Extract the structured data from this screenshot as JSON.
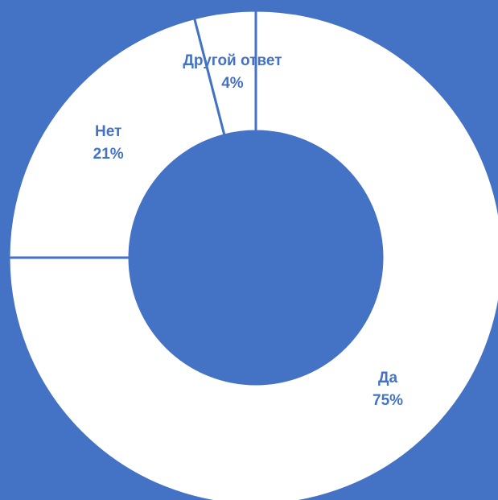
{
  "chart_data": {
    "type": "donut",
    "categories": [
      "Да",
      "Нет",
      "Другой ответ"
    ],
    "values": [
      75,
      21,
      4
    ],
    "value_labels": [
      "75%",
      "21%",
      "4%"
    ],
    "color": "#ffffff",
    "background": "#4472c4",
    "label_color": "#4472c4"
  }
}
